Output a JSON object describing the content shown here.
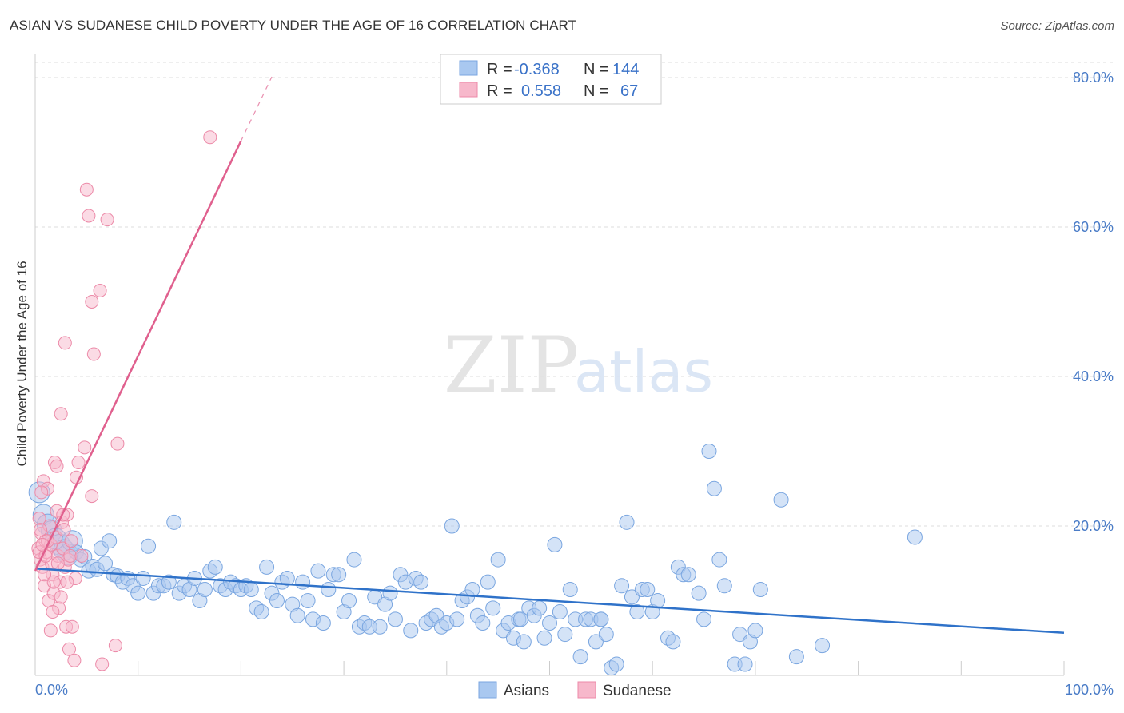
{
  "chart_data": {
    "type": "scatter",
    "title": "ASIAN VS SUDANESE CHILD POVERTY UNDER THE AGE OF 16 CORRELATION CHART",
    "source": "Source: ZipAtlas.com",
    "ylabel": "Child Poverty Under the Age of 16",
    "xlabel": "",
    "xlim": [
      0,
      100
    ],
    "ylim": [
      0,
      83
    ],
    "x_tick_labels": [
      "0.0%",
      "100.0%"
    ],
    "y_ticks": [
      20,
      40,
      60,
      80
    ],
    "y_tick_labels": [
      "20.0%",
      "40.0%",
      "60.0%",
      "80.0%"
    ],
    "grid": true,
    "watermark": {
      "zip": "ZIP",
      "atlas": "atlas"
    },
    "legend": {
      "rows": [
        {
          "r_label": "R =",
          "r_value": "-0.368",
          "n_label": "N =",
          "n_value": "144"
        },
        {
          "r_label": "R =",
          "r_value": "0.558",
          "n_label": "N =",
          "n_value": "67"
        }
      ]
    },
    "series": [
      {
        "name": "Asians",
        "color": "#a9c8f0",
        "edge": "#7aa6e0",
        "trend_color": "#2f72c9",
        "trend": {
          "x0": 0,
          "y0": 14.3,
          "x1": 100,
          "y1": 5.7
        },
        "points": [
          [
            0.4,
            24.5
          ],
          [
            0.8,
            21.5
          ],
          [
            1.2,
            20.2
          ],
          [
            1.6,
            19.3
          ],
          [
            2.0,
            18.3
          ],
          [
            2.4,
            17.5
          ],
          [
            2.8,
            16.8
          ],
          [
            3.2,
            16.2
          ],
          [
            3.6,
            18.0
          ],
          [
            4.0,
            16.5
          ],
          [
            4.4,
            15.5
          ],
          [
            4.8,
            15.9
          ],
          [
            5.2,
            14.0
          ],
          [
            5.6,
            14.6
          ],
          [
            6.0,
            14.2
          ],
          [
            6.4,
            17.0
          ],
          [
            6.8,
            15.0
          ],
          [
            7.2,
            18.0
          ],
          [
            7.6,
            13.5
          ],
          [
            8.0,
            13.3
          ],
          [
            8.5,
            12.5
          ],
          [
            9.0,
            13.0
          ],
          [
            9.5,
            12.0
          ],
          [
            10.0,
            11.0
          ],
          [
            10.5,
            13.0
          ],
          [
            11.0,
            17.3
          ],
          [
            11.5,
            11.0
          ],
          [
            12.0,
            12.0
          ],
          [
            12.5,
            12.0
          ],
          [
            13.0,
            12.5
          ],
          [
            13.5,
            20.5
          ],
          [
            14.0,
            11.0
          ],
          [
            14.5,
            12.0
          ],
          [
            15.0,
            11.5
          ],
          [
            15.5,
            13.0
          ],
          [
            16.0,
            10.0
          ],
          [
            16.5,
            11.5
          ],
          [
            17.0,
            14.0
          ],
          [
            17.5,
            14.5
          ],
          [
            18.0,
            12.0
          ],
          [
            18.5,
            11.5
          ],
          [
            19.0,
            12.5
          ],
          [
            19.5,
            12.0
          ],
          [
            20.0,
            11.5
          ],
          [
            20.5,
            12.0
          ],
          [
            21.0,
            11.5
          ],
          [
            21.5,
            9.0
          ],
          [
            22.0,
            8.5
          ],
          [
            22.5,
            14.5
          ],
          [
            23.0,
            11.0
          ],
          [
            23.5,
            10.0
          ],
          [
            24.0,
            12.5
          ],
          [
            24.5,
            13.0
          ],
          [
            25.0,
            9.5
          ],
          [
            25.5,
            8.0
          ],
          [
            26.0,
            12.5
          ],
          [
            26.5,
            10.0
          ],
          [
            27.0,
            7.5
          ],
          [
            27.5,
            14.0
          ],
          [
            28.0,
            7.0
          ],
          [
            28.5,
            11.5
          ],
          [
            29.0,
            13.5
          ],
          [
            29.5,
            13.5
          ],
          [
            30.0,
            8.5
          ],
          [
            30.5,
            10.0
          ],
          [
            31.0,
            15.5
          ],
          [
            31.5,
            6.5
          ],
          [
            32.0,
            7.0
          ],
          [
            32.5,
            6.5
          ],
          [
            33.0,
            10.5
          ],
          [
            33.5,
            6.5
          ],
          [
            34.0,
            9.5
          ],
          [
            34.5,
            11.0
          ],
          [
            35.0,
            7.5
          ],
          [
            35.5,
            13.5
          ],
          [
            36.0,
            12.5
          ],
          [
            36.5,
            6.0
          ],
          [
            37.0,
            13.0
          ],
          [
            37.5,
            12.5
          ],
          [
            38.0,
            7.0
          ],
          [
            38.5,
            7.5
          ],
          [
            39.0,
            8.0
          ],
          [
            39.5,
            6.5
          ],
          [
            40.0,
            7.0
          ],
          [
            40.5,
            20.0
          ],
          [
            41.0,
            7.5
          ],
          [
            41.5,
            10.0
          ],
          [
            42.0,
            10.5
          ],
          [
            42.5,
            11.5
          ],
          [
            43.0,
            8.0
          ],
          [
            43.5,
            7.0
          ],
          [
            44.0,
            12.5
          ],
          [
            44.5,
            9.0
          ],
          [
            45.0,
            15.5
          ],
          [
            45.5,
            6.0
          ],
          [
            46.0,
            7.0
          ],
          [
            46.5,
            5.0
          ],
          [
            47.0,
            7.5
          ],
          [
            47.5,
            4.5
          ],
          [
            48.0,
            9.0
          ],
          [
            48.5,
            8.0
          ],
          [
            49.0,
            9.0
          ],
          [
            49.5,
            5.0
          ],
          [
            50.0,
            7.0
          ],
          [
            50.5,
            17.5
          ],
          [
            51.0,
            8.5
          ],
          [
            51.5,
            5.5
          ],
          [
            52.0,
            11.5
          ],
          [
            52.5,
            7.5
          ],
          [
            53.0,
            2.5
          ],
          [
            53.5,
            7.5
          ],
          [
            54.0,
            7.5
          ],
          [
            54.5,
            4.5
          ],
          [
            55.0,
            7.5
          ],
          [
            55.5,
            5.5
          ],
          [
            56.0,
            1.0
          ],
          [
            56.5,
            1.5
          ],
          [
            57.0,
            12.0
          ],
          [
            57.5,
            20.5
          ],
          [
            58.0,
            10.5
          ],
          [
            58.5,
            8.5
          ],
          [
            59.0,
            11.5
          ],
          [
            59.5,
            11.5
          ],
          [
            60.0,
            8.5
          ],
          [
            60.5,
            10.0
          ],
          [
            61.5,
            5.0
          ],
          [
            62.0,
            4.5
          ],
          [
            62.5,
            14.5
          ],
          [
            63.0,
            13.5
          ],
          [
            63.5,
            13.5
          ],
          [
            64.5,
            11.0
          ],
          [
            65.0,
            7.5
          ],
          [
            65.5,
            30.0
          ],
          [
            66.0,
            25.0
          ],
          [
            66.5,
            15.5
          ],
          [
            67.0,
            12.0
          ],
          [
            68.0,
            1.5
          ],
          [
            68.5,
            5.5
          ],
          [
            69.0,
            1.5
          ],
          [
            69.5,
            4.5
          ],
          [
            70.0,
            6.0
          ],
          [
            70.5,
            11.5
          ],
          [
            72.5,
            23.5
          ],
          [
            74.0,
            2.5
          ],
          [
            76.5,
            4.0
          ],
          [
            85.5,
            18.5
          ],
          [
            47.2,
            7.5
          ],
          [
            55.0,
            7.5
          ]
        ]
      },
      {
        "name": "Sudanese",
        "color": "#f7b8cb",
        "edge": "#ec8aa8",
        "trend_color": "#e0608e",
        "trend": {
          "x0": 0,
          "y0": 14.0,
          "x1": 20.0,
          "y1": 71.5,
          "dash_x1": 23.0,
          "dash_y1": 80.1
        },
        "points": [
          [
            0.3,
            17.0
          ],
          [
            0.4,
            21.0
          ],
          [
            0.5,
            15.5
          ],
          [
            0.6,
            19.0
          ],
          [
            0.7,
            14.5
          ],
          [
            0.8,
            26.0
          ],
          [
            0.9,
            12.0
          ],
          [
            1.0,
            18.0
          ],
          [
            1.1,
            16.5
          ],
          [
            1.2,
            25.0
          ],
          [
            1.3,
            10.0
          ],
          [
            1.4,
            20.0
          ],
          [
            1.5,
            17.5
          ],
          [
            1.6,
            15.0
          ],
          [
            1.7,
            13.5
          ],
          [
            1.8,
            11.0
          ],
          [
            1.9,
            28.5
          ],
          [
            2.0,
            18.5
          ],
          [
            2.1,
            22.0
          ],
          [
            2.2,
            16.0
          ],
          [
            2.3,
            9.0
          ],
          [
            2.4,
            12.5
          ],
          [
            2.5,
            35.0
          ],
          [
            2.6,
            20.5
          ],
          [
            2.7,
            17.0
          ],
          [
            2.8,
            19.5
          ],
          [
            2.9,
            14.5
          ],
          [
            3.0,
            6.5
          ],
          [
            3.1,
            21.5
          ],
          [
            3.2,
            15.5
          ],
          [
            3.3,
            3.5
          ],
          [
            3.4,
            16.0
          ],
          [
            3.5,
            18.0
          ],
          [
            3.6,
            6.5
          ],
          [
            3.8,
            2.0
          ],
          [
            3.9,
            13.0
          ],
          [
            4.0,
            26.5
          ],
          [
            4.2,
            28.5
          ],
          [
            4.5,
            16.0
          ],
          [
            4.8,
            30.5
          ],
          [
            5.0,
            65.0
          ],
          [
            5.2,
            61.5
          ],
          [
            5.5,
            24.0
          ],
          [
            5.7,
            43.0
          ],
          [
            5.5,
            50.0
          ],
          [
            6.3,
            51.5
          ],
          [
            6.5,
            1.5
          ],
          [
            7.0,
            61.0
          ],
          [
            7.8,
            4.0
          ],
          [
            8.0,
            31.0
          ],
          [
            17.0,
            72.0
          ],
          [
            2.9,
            44.5
          ],
          [
            1.5,
            6.0
          ],
          [
            0.6,
            24.5
          ],
          [
            2.1,
            28.0
          ],
          [
            0.9,
            13.5
          ],
          [
            1.8,
            12.5
          ],
          [
            2.5,
            10.5
          ],
          [
            0.4,
            16.5
          ],
          [
            1.2,
            18.0
          ],
          [
            2.7,
            21.5
          ],
          [
            1.7,
            8.5
          ],
          [
            0.5,
            19.5
          ],
          [
            2.2,
            15.0
          ],
          [
            1.0,
            16.0
          ],
          [
            3.1,
            12.5
          ],
          [
            0.7,
            17.5
          ]
        ]
      }
    ]
  }
}
